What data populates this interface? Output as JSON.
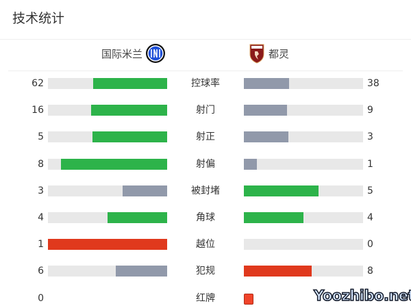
{
  "title": "技术统计",
  "home": {
    "name": "国际米兰",
    "logo": "inter-logo"
  },
  "away": {
    "name": "都灵",
    "logo": "torino-logo"
  },
  "colors": {
    "green": "#2db34a",
    "gray": "#9199aa",
    "red": "#e0391d",
    "track": "#e8e8e8"
  },
  "stats": [
    {
      "label": "控球率",
      "home": 62,
      "away": 38,
      "home_color": "green",
      "away_color": "gray"
    },
    {
      "label": "射门",
      "home": 16,
      "away": 9,
      "home_color": "green",
      "away_color": "gray"
    },
    {
      "label": "射正",
      "home": 5,
      "away": 3,
      "home_color": "green",
      "away_color": "gray"
    },
    {
      "label": "射偏",
      "home": 8,
      "away": 1,
      "home_color": "green",
      "away_color": "gray"
    },
    {
      "label": "被封堵",
      "home": 3,
      "away": 5,
      "home_color": "gray",
      "away_color": "green"
    },
    {
      "label": "角球",
      "home": 4,
      "away": 4,
      "home_color": "green",
      "away_color": "green"
    },
    {
      "label": "越位",
      "home": 1,
      "away": 0,
      "home_color": "red",
      "away_color": "gray"
    },
    {
      "label": "犯规",
      "home": 6,
      "away": 8,
      "home_color": "gray",
      "away_color": "red"
    },
    {
      "label": "红牌",
      "home": 0,
      "red_card_icon": "red-card-icon"
    }
  ],
  "watermark": "Yoozhibo.net"
}
